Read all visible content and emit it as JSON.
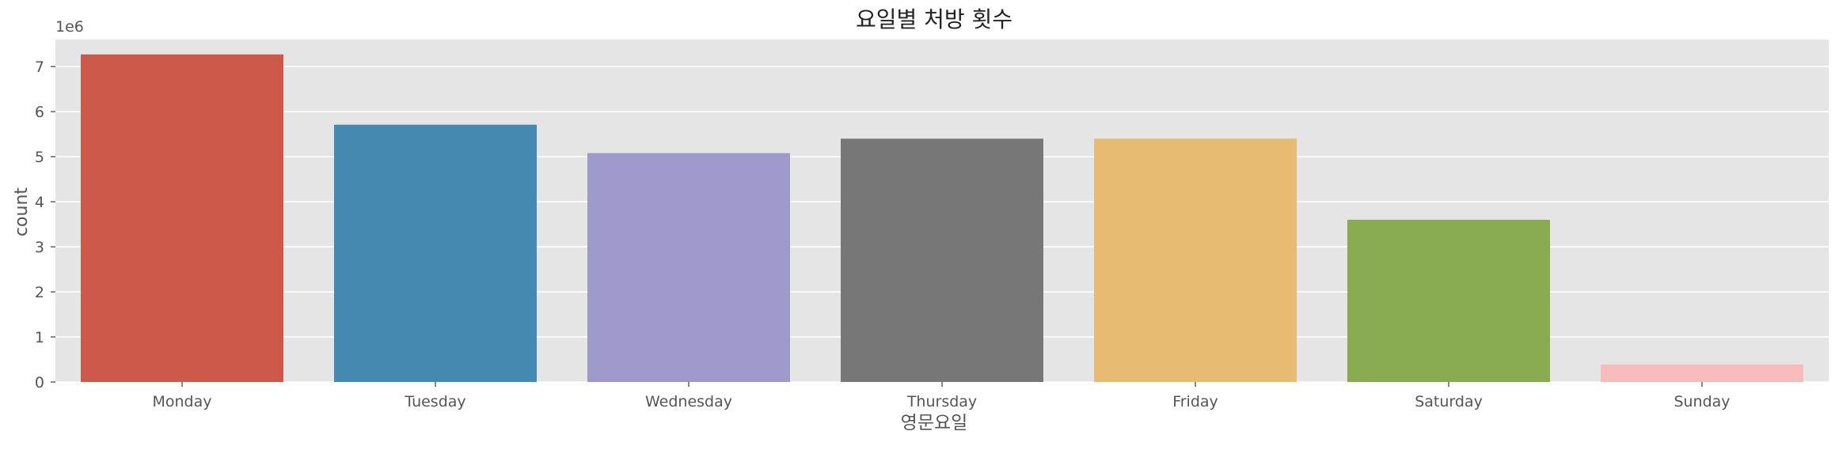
{
  "chart_data": {
    "type": "bar",
    "title": "요일별 처방 횟수",
    "xlabel": "영문요일",
    "ylabel": "count",
    "offset_text": "1e6",
    "categories": [
      "Monday",
      "Tuesday",
      "Wednesday",
      "Thursday",
      "Friday",
      "Saturday",
      "Sunday"
    ],
    "values": [
      7270000,
      5710000,
      5080000,
      5400000,
      5400000,
      3600000,
      390000
    ],
    "colors": [
      "#CD5A48",
      "#4588B0",
      "#9E98CB",
      "#777777",
      "#E8BB72",
      "#88AB52",
      "#F8BBBB"
    ],
    "ylim": [
      0,
      7600000
    ],
    "yticks": [
      0,
      1000000,
      2000000,
      3000000,
      4000000,
      5000000,
      6000000,
      7000000
    ],
    "ytick_labels": [
      "0",
      "1",
      "2",
      "3",
      "4",
      "5",
      "6",
      "7"
    ],
    "grid": true,
    "background": "#E5E5E5"
  }
}
